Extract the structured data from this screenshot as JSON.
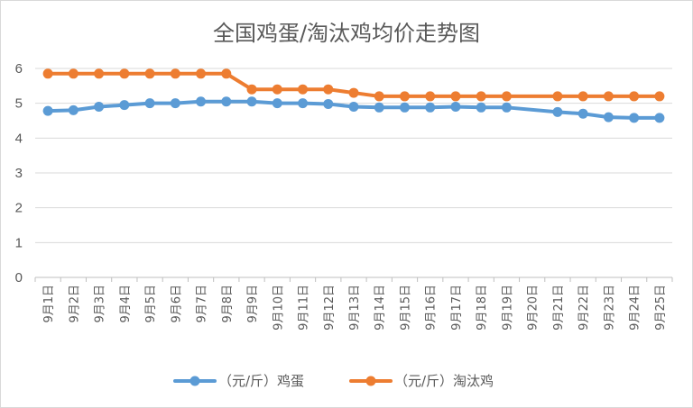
{
  "chart_data": {
    "type": "line",
    "title": "全国鸡蛋/淘汰鸡均价走势图",
    "categories": [
      "9月1日",
      "9月2日",
      "9月3日",
      "9月4日",
      "9月5日",
      "9月6日",
      "9月7日",
      "9月8日",
      "9月9日",
      "9月10日",
      "9月11日",
      "9月12日",
      "9月13日",
      "9月14日",
      "9月15日",
      "9月16日",
      "9月17日",
      "9月18日",
      "9月19日",
      "9月20日",
      "9月21日",
      "9月22日",
      "9月23日",
      "9月24日",
      "9月25日"
    ],
    "series": [
      {
        "name": "（元/斤）鸡蛋",
        "color": "#5b9bd5",
        "values": [
          4.78,
          4.8,
          4.9,
          4.95,
          5.0,
          5.0,
          5.05,
          5.05,
          5.05,
          5.0,
          5.0,
          4.98,
          4.9,
          4.88,
          4.88,
          4.88,
          4.9,
          4.88,
          4.88,
          null,
          4.75,
          4.7,
          4.6,
          4.58,
          4.58
        ]
      },
      {
        "name": "（元/斤）淘汰鸡",
        "color": "#ed7d31",
        "values": [
          5.85,
          5.85,
          5.85,
          5.85,
          5.85,
          5.85,
          5.85,
          5.85,
          5.4,
          5.4,
          5.4,
          5.4,
          5.3,
          5.2,
          5.2,
          5.2,
          5.2,
          5.2,
          5.2,
          null,
          5.2,
          5.2,
          5.2,
          5.2,
          5.2
        ]
      }
    ],
    "ylim": [
      0,
      6
    ],
    "yticks": [
      "0",
      "1",
      "2",
      "3",
      "4",
      "5",
      "6"
    ],
    "grid": true,
    "legend": "bottom"
  }
}
